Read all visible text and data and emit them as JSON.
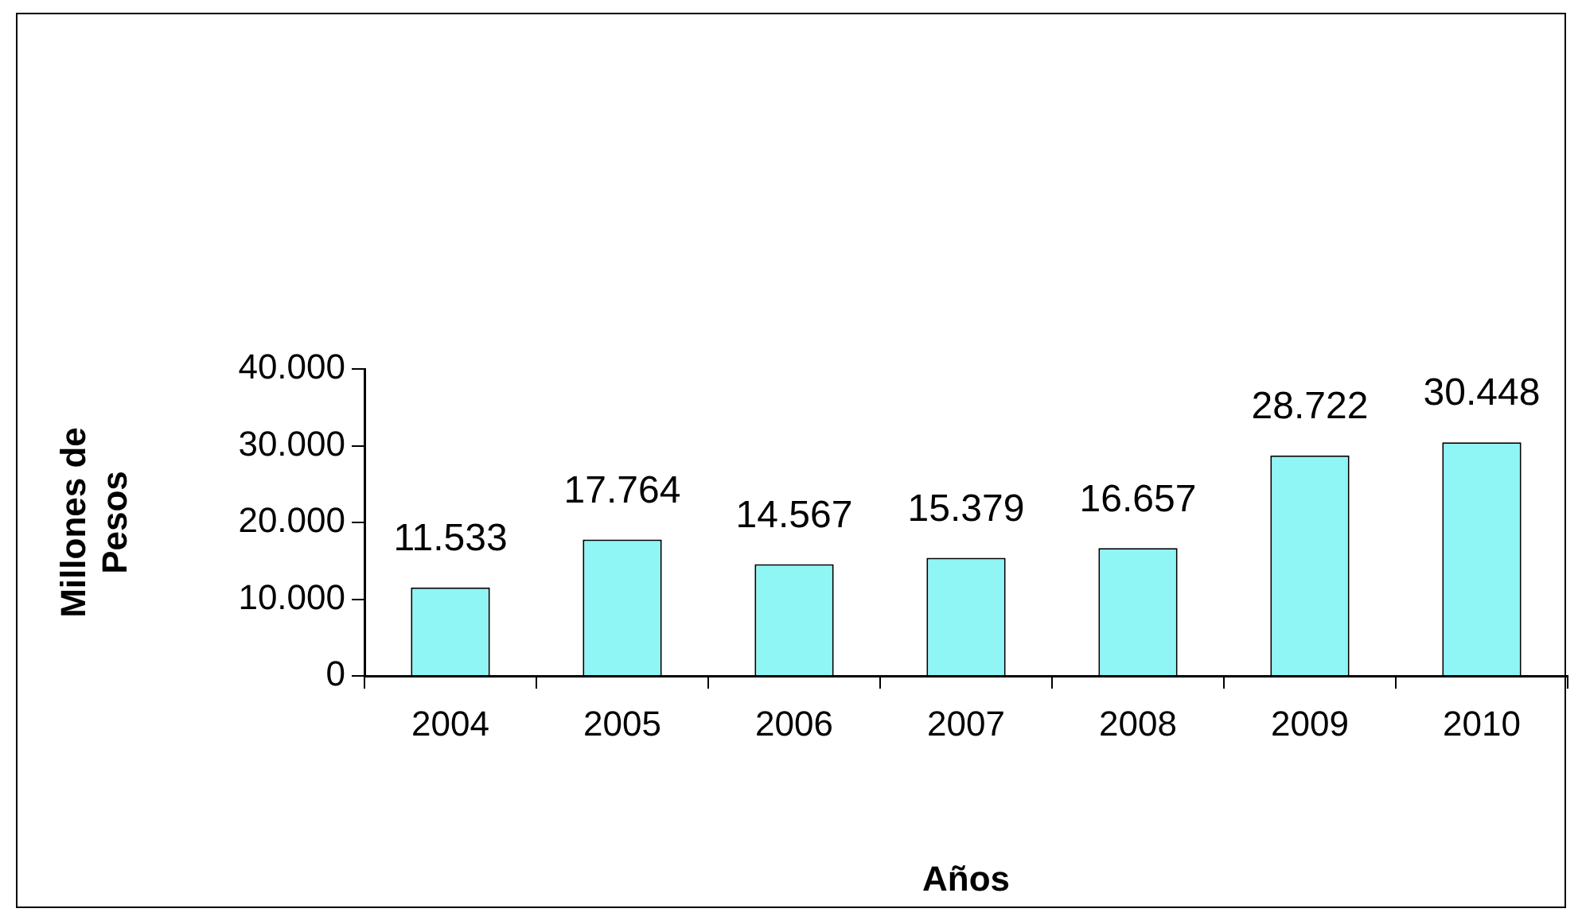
{
  "chart_data": {
    "type": "bar",
    "xlabel": "Años",
    "ylabel": "Millones de Pesos",
    "categories": [
      "2004",
      "2005",
      "2006",
      "2007",
      "2008",
      "2009",
      "2010"
    ],
    "values": [
      11533,
      17764,
      14567,
      15379,
      16657,
      28722,
      30448
    ],
    "value_labels": [
      "11.533",
      "17.764",
      "14.567",
      "15.379",
      "16.657",
      "28.722",
      "30.448"
    ],
    "color": "#8ff5f5",
    "ylim": [
      0,
      40000
    ],
    "yticks": [
      0,
      {
        "value": 10000,
        "label": "10.000"
      },
      {
        "value": 20000,
        "label": "20.000"
      },
      {
        "value": 30000,
        "label": "30.000"
      },
      {
        "value": 40000,
        "label": "40.000"
      }
    ],
    "grid": false,
    "legend": false
  }
}
